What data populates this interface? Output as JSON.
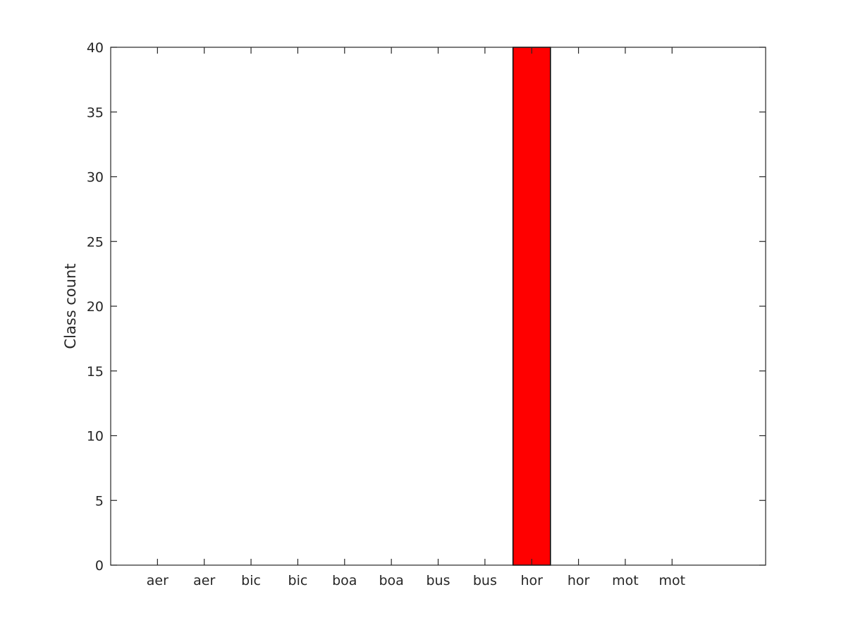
{
  "chart_data": {
    "type": "bar",
    "title": "",
    "xlabel": "",
    "ylabel": "Class count",
    "categories": [
      "aer",
      "aer",
      "bic",
      "bic",
      "boa",
      "boa",
      "bus",
      "bus",
      "hor",
      "hor",
      "mot",
      "mot"
    ],
    "values": [
      0,
      0,
      0,
      0,
      0,
      0,
      0,
      0,
      40,
      0,
      0,
      0
    ],
    "xlim": [
      0,
      14
    ],
    "ylim": [
      0,
      40
    ],
    "yticks": [
      0,
      5,
      10,
      15,
      20,
      25,
      30,
      35,
      40
    ],
    "grid": false,
    "legend": "none",
    "bar_color": "#ff0000",
    "edge_color": "#000000",
    "axis_color": "#262626"
  }
}
